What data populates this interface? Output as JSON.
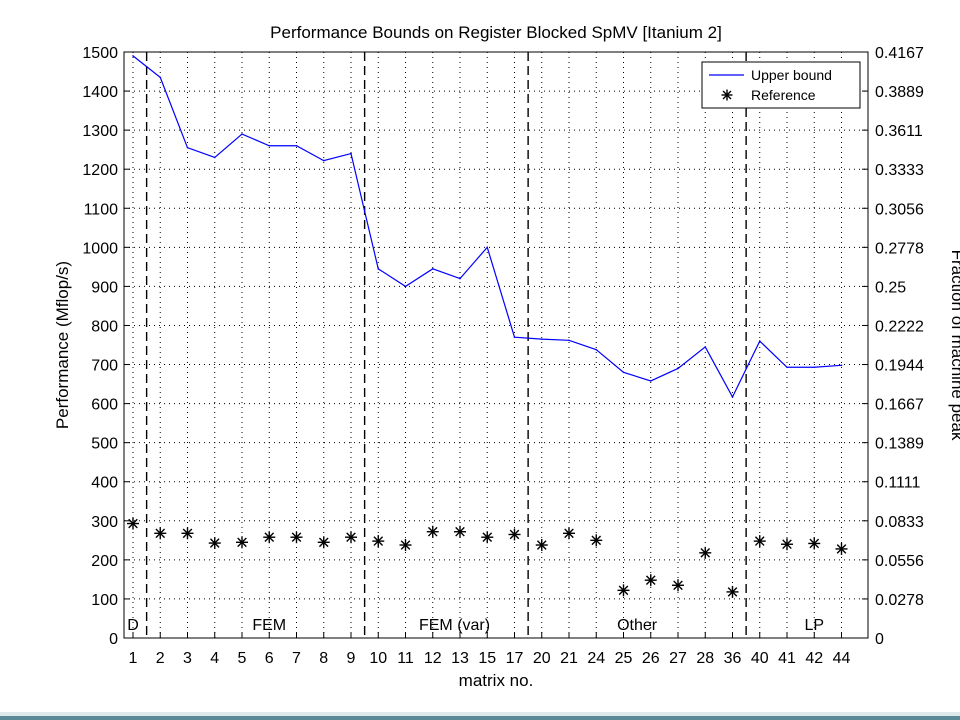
{
  "chart_data": {
    "type": "line",
    "title": "Performance Bounds on Register Blocked SpMV [Itanium 2]",
    "xlabel": "matrix no.",
    "ylabel": "Performance (Mflop/s)",
    "y2label": "Fraction of machine peak",
    "categories": [
      "1",
      "2",
      "3",
      "4",
      "5",
      "6",
      "7",
      "8",
      "9",
      "10",
      "11",
      "12",
      "13",
      "15",
      "17",
      "20",
      "21",
      "24",
      "25",
      "26",
      "27",
      "28",
      "36",
      "40",
      "41",
      "42",
      "44"
    ],
    "ylim": [
      0,
      1500
    ],
    "yticks": [
      0,
      100,
      200,
      300,
      400,
      500,
      600,
      700,
      800,
      900,
      1000,
      1100,
      1200,
      1300,
      1400,
      1500
    ],
    "y2ticks": [
      "0",
      "0.0278",
      "0.0556",
      "0.0833",
      "0.1111",
      "0.1389",
      "0.1667",
      "0.1944",
      "0.2222",
      "0.25",
      "0.2778",
      "0.3056",
      "0.3333",
      "0.3611",
      "0.3889",
      "0.4167"
    ],
    "grid": true,
    "legend_position": "top-right",
    "series": [
      {
        "name": "Upper bound",
        "style": "line",
        "color": "#0000ff",
        "values": [
          1490,
          1435,
          1255,
          1230,
          1290,
          1260,
          1260,
          1222,
          1240,
          945,
          900,
          945,
          920,
          1000,
          770,
          765,
          762,
          738,
          680,
          658,
          690,
          745,
          617,
          760,
          693,
          693,
          698
        ]
      },
      {
        "name": "Reference",
        "style": "marker",
        "marker": "asterisk",
        "color": "#000000",
        "values": [
          293,
          268,
          268,
          243,
          245,
          258,
          258,
          245,
          258,
          248,
          238,
          272,
          272,
          258,
          265,
          238,
          268,
          250,
          122,
          148,
          135,
          218,
          118,
          248,
          240,
          242,
          228
        ]
      }
    ],
    "group_separators_after_index": [
      0,
      8,
      14,
      22
    ],
    "group_labels": [
      {
        "text": "D",
        "center_index": 0
      },
      {
        "text": "FEM",
        "center_index": 5
      },
      {
        "text": "FEM (var)",
        "center_index": 11.8
      },
      {
        "text": "Other",
        "center_index": 18.5
      },
      {
        "text": "LP",
        "center_index": 25
      }
    ]
  }
}
